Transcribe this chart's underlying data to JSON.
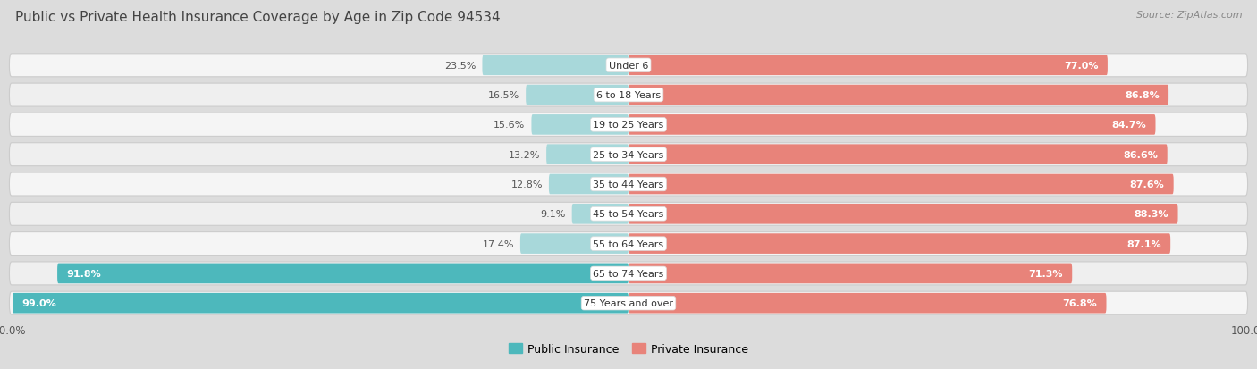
{
  "title": "Public vs Private Health Insurance Coverage by Age in Zip Code 94534",
  "source": "Source: ZipAtlas.com",
  "categories": [
    "Under 6",
    "6 to 18 Years",
    "19 to 25 Years",
    "25 to 34 Years",
    "35 to 44 Years",
    "45 to 54 Years",
    "55 to 64 Years",
    "65 to 74 Years",
    "75 Years and over"
  ],
  "public_values": [
    23.5,
    16.5,
    15.6,
    13.2,
    12.8,
    9.1,
    17.4,
    91.8,
    99.0
  ],
  "private_values": [
    77.0,
    86.8,
    84.7,
    86.6,
    87.6,
    88.3,
    87.1,
    71.3,
    76.8
  ],
  "public_color_strong": "#4db8bc",
  "public_color_light": "#a8d8da",
  "private_color_strong": "#e8837a",
  "private_color_light": "#f0aea9",
  "row_color_odd": "#f0f0f0",
  "row_color_even": "#e8e8e8",
  "row_bg_white": "#f8f8f8",
  "bg_color": "#dcdcdc",
  "title_color": "#444444",
  "source_color": "#888888",
  "label_dark": "#555555",
  "label_white": "#ffffff",
  "max_val": 100.0,
  "legend_public": "Public Insurance",
  "legend_private": "Private Insurance",
  "strong_threshold": 50.0
}
